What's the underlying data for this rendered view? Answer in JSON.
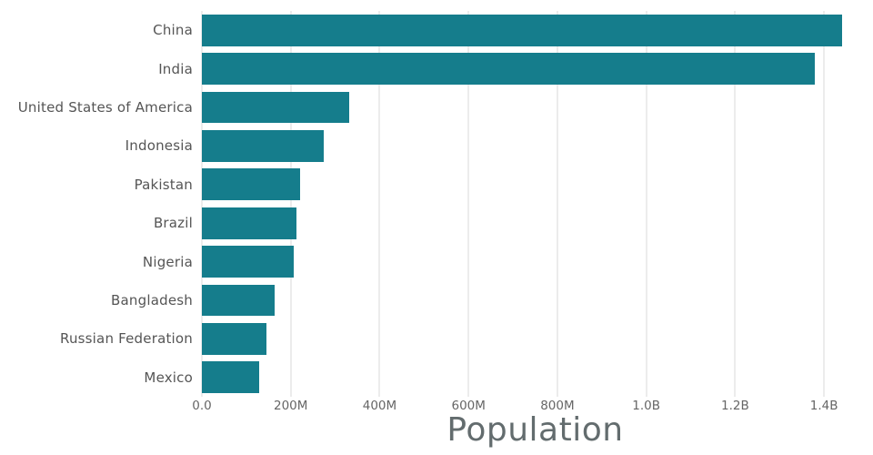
{
  "chart_data": {
    "type": "bar",
    "orientation": "horizontal",
    "title": "",
    "xlabel": "Population",
    "ylabel": "",
    "categories": [
      "China",
      "India",
      "United States of America",
      "Indonesia",
      "Pakistan",
      "Brazil",
      "Nigeria",
      "Bangladesh",
      "Russian Federation",
      "Mexico"
    ],
    "values": [
      1440000000,
      1380000000,
      331000000,
      273500000,
      220900000,
      212600000,
      206100000,
      164700000,
      145900000,
      128900000
    ],
    "xlim": [
      0,
      1500000000
    ],
    "xticks": [
      {
        "value": 0,
        "label": "0.0"
      },
      {
        "value": 200000000,
        "label": "200M"
      },
      {
        "value": 400000000,
        "label": "400M"
      },
      {
        "value": 600000000,
        "label": "600M"
      },
      {
        "value": 800000000,
        "label": "800M"
      },
      {
        "value": 1000000000,
        "label": "1.0B"
      },
      {
        "value": 1200000000,
        "label": "1.2B"
      },
      {
        "value": 1400000000,
        "label": "1.4B"
      }
    ],
    "grid": true,
    "legend": "none",
    "bar_color": "#157d8c"
  }
}
